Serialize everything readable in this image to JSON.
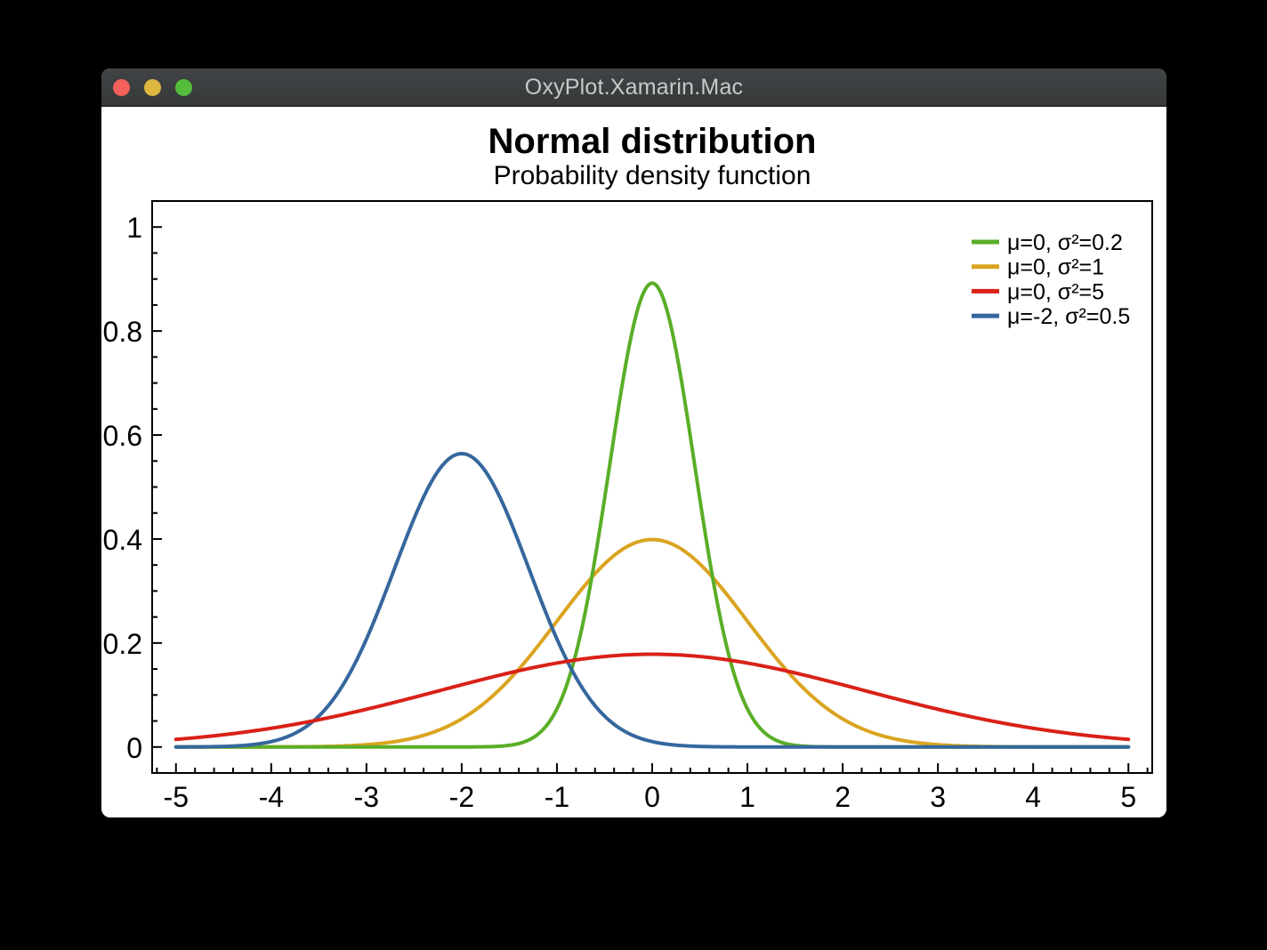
{
  "window": {
    "title": "OxyPlot.Xamarin.Mac",
    "controls": [
      {
        "name": "close",
        "color": "#f4605a"
      },
      {
        "name": "minimize",
        "color": "#ddb73f"
      },
      {
        "name": "zoom",
        "color": "#55bd3b"
      }
    ],
    "titlebar_color": "#3a3d3f",
    "body_color": "#ffffff"
  },
  "chart_data": {
    "type": "line",
    "title": "Normal distribution",
    "subtitle": "Probability density function",
    "xlabel": "",
    "ylabel": "",
    "xlim": [
      -5.25,
      5.25
    ],
    "ylim": [
      -0.05,
      1.05
    ],
    "x_major_ticks": [
      -5,
      -4,
      -3,
      -2,
      -1,
      0,
      1,
      2,
      3,
      4,
      5
    ],
    "y_major_ticks": [
      0,
      0.2,
      0.4,
      0.6,
      0.8,
      1
    ],
    "x_minor_step": 0.2,
    "y_minor_step": 0.05,
    "grid": false,
    "tick_style": "inside",
    "border_color": "#000000",
    "legend": {
      "position": "top-right-inside",
      "text_color": "#000000"
    },
    "draw_order": [
      1,
      0,
      3,
      2
    ],
    "sample_x": [
      -5,
      -4.5,
      -4,
      -3.5,
      -3,
      -2.5,
      -2,
      -1.5,
      -1,
      -0.5,
      0,
      0.5,
      1,
      1.5,
      2,
      2.5,
      3,
      3.5,
      4,
      4.5,
      5
    ],
    "series": [
      {
        "label": "μ=0, σ²=0.2",
        "mu": 0,
        "sigma2": 0.2,
        "color": "#5aae27",
        "sample_y": [
          0,
          0,
          0,
          0,
          0,
          0,
          4e-05,
          0.00322,
          0.07323,
          0.47752,
          0.89206,
          0.47752,
          0.07323,
          0.00322,
          4e-05,
          0,
          0,
          0,
          0,
          0,
          0
        ]
      },
      {
        "label": "μ=0, σ²=1",
        "mu": 0,
        "sigma2": 1,
        "color": "#dba420",
        "sample_y": [
          1.5e-06,
          1.6e-05,
          0.000134,
          0.000873,
          0.004432,
          0.017528,
          0.053991,
          0.129518,
          0.241971,
          0.352065,
          0.398942,
          0.352065,
          0.241971,
          0.129518,
          0.053991,
          0.017528,
          0.004432,
          0.000873,
          0.000134,
          1.6e-05,
          1.5e-06
        ]
      },
      {
        "label": "μ=0, σ²=5",
        "mu": 0,
        "sigma2": 5,
        "color": "#d92118",
        "sample_y": [
          0.014645,
          0.023549,
          0.03602,
          0.05241,
          0.072536,
          0.095497,
          0.119593,
          0.142465,
          0.161434,
          0.174007,
          0.178412,
          0.174007,
          0.161434,
          0.142465,
          0.119593,
          0.095497,
          0.072536,
          0.05241,
          0.03602,
          0.023549,
          0.014645
        ]
      },
      {
        "label": "μ=-2, σ²=0.5",
        "mu": -2,
        "sigma2": 0.5,
        "color": "#35679e",
        "sample_y": [
          7e-05,
          0.001089,
          0.010334,
          0.059465,
          0.207554,
          0.439392,
          0.56419,
          0.439392,
          0.207554,
          0.059465,
          0.010334,
          0.001089,
          7e-05,
          3e-06,
          0,
          0,
          0,
          0,
          0,
          0,
          0
        ]
      }
    ]
  }
}
